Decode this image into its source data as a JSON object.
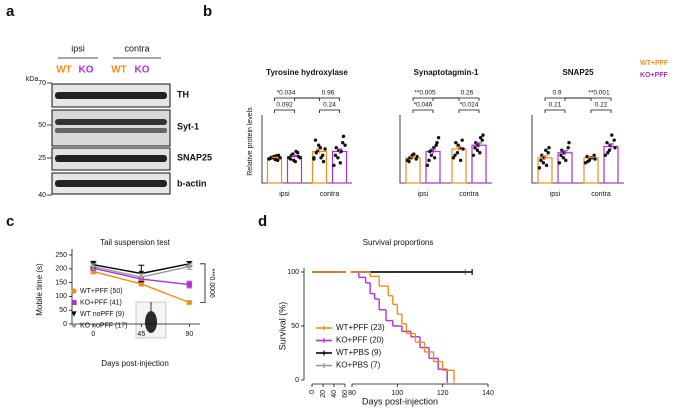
{
  "panel_labels": [
    "a",
    "b",
    "c",
    "d"
  ],
  "blot": {
    "groups": [
      "ipsi",
      "contra"
    ],
    "lanes": [
      "WT",
      "KO",
      "WT",
      "KO"
    ],
    "marker_unit": "kDa",
    "markers": [
      "70",
      "50",
      "25",
      "40"
    ],
    "proteins": [
      "TH",
      "Syt-1",
      "SNAP25",
      "b-actin"
    ]
  },
  "chart_data": [
    {
      "type": "bar",
      "title": "Tyrosine hydroxylase",
      "ylabel": "Relative protein levels",
      "categories": [
        "ipsi",
        "contra"
      ],
      "ylim": [
        0,
        2.5
      ],
      "series": [
        {
          "color": "#f28c1e",
          "values": [
            1.0,
            1.25
          ],
          "errors": [
            0.02,
            0.08
          ],
          "points": [
            [
              0.95,
              1.0,
              1.05,
              0.9,
              1.1,
              0.98,
              1.02,
              0.93,
              1.08,
              1.0
            ],
            [
              1.0,
              1.3,
              1.5,
              1.1,
              0.85,
              1.7,
              1.2,
              1.4,
              1.0,
              1.35,
              0.95
            ]
          ]
        },
        {
          "color": "#a833d6",
          "values": [
            1.05,
            1.25
          ],
          "errors": [
            0.04,
            0.1
          ],
          "points": [
            [
              1.0,
              1.15,
              0.9,
              1.2,
              1.05,
              0.95,
              1.1,
              0.85,
              1.25,
              1.0
            ],
            [
              0.7,
              1.0,
              1.3,
              1.6,
              1.85,
              1.1,
              1.4,
              0.8,
              1.25,
              1.5
            ]
          ]
        }
      ],
      "annotations": [
        "*0.034",
        "0.96",
        "0.092",
        "0.24"
      ]
    },
    {
      "type": "bar",
      "title": "Synaptotagmin-1",
      "categories": [
        "ipsi",
        "contra"
      ],
      "ylim": [
        0,
        2.5
      ],
      "series": [
        {
          "color": "#f28c1e",
          "values": [
            1.0,
            1.35
          ],
          "errors": [
            0.03,
            0.08
          ],
          "points": [
            [
              0.9,
              1.0,
              1.1,
              0.95,
              1.05,
              0.85,
              1.0,
              1.15
            ],
            [
              1.0,
              1.2,
              1.5,
              1.7,
              1.35,
              1.1,
              1.6,
              1.4,
              0.9
            ]
          ]
        },
        {
          "color": "#a833d6",
          "values": [
            1.25,
            1.5
          ],
          "errors": [
            0.1,
            0.09
          ],
          "points": [
            [
              0.7,
              1.1,
              1.3,
              1.5,
              1.6,
              0.9,
              1.25,
              1.4,
              1.0,
              1.8
            ],
            [
              1.1,
              1.3,
              1.5,
              1.7,
              1.9,
              1.4,
              1.6,
              1.2,
              1.8
            ]
          ]
        }
      ],
      "annotations": [
        "**0.005",
        "0.26",
        "*0.046",
        "*0.024"
      ]
    },
    {
      "type": "bar",
      "title": "SNAP25",
      "categories": [
        "ipsi",
        "contra"
      ],
      "ylim": [
        0,
        2.5
      ],
      "legend": "right",
      "series": [
        {
          "name": "WT+PFF",
          "color": "#f28c1e",
          "values": [
            1.0,
            1.0
          ],
          "errors": [
            0.08,
            0.02
          ],
          "points": [
            [
              0.6,
              0.8,
              1.0,
              1.2,
              1.4,
              0.9,
              1.1,
              1.3,
              0.7
            ],
            [
              0.8,
              0.9,
              1.0,
              1.1,
              0.95,
              1.05,
              0.85,
              1.0
            ]
          ]
        },
        {
          "name": "KO+PFF",
          "color": "#a833d6",
          "values": [
            1.2,
            1.45
          ],
          "errors": [
            0.08,
            0.1
          ],
          "points": [
            [
              0.8,
              1.0,
              1.2,
              1.4,
              1.6,
              1.1,
              1.3,
              0.9
            ],
            [
              1.1,
              1.3,
              1.5,
              1.7,
              1.4,
              1.6,
              1.2,
              1.9
            ]
          ]
        }
      ],
      "annotations": [
        "0.9",
        "**0.001",
        "0.21",
        "0.22"
      ]
    },
    {
      "type": "line",
      "title": "Tail suspension test",
      "xlabel": "Days post-injection",
      "ylabel": "Mobile time (s)",
      "x": [
        0,
        45,
        90
      ],
      "xlim": [
        -20,
        100
      ],
      "xticks": [
        0,
        45,
        90
      ],
      "ylim": [
        0,
        250
      ],
      "yticks": [
        0,
        50,
        100,
        150,
        200,
        250
      ],
      "legend": "lower left",
      "series": [
        {
          "name": "WT+PFF (50)",
          "color": "#f28c1e",
          "marker": "circle",
          "values": [
            190,
            145,
            78
          ],
          "errors": [
            8,
            7,
            6
          ]
        },
        {
          "name": "KO+PFF (41)",
          "color": "#a833d6",
          "marker": "square",
          "values": [
            202,
            163,
            143
          ],
          "errors": [
            7,
            8,
            12
          ]
        },
        {
          "name": "WT noPFF (9)",
          "color": "#000000",
          "marker": "triangle",
          "values": [
            215,
            183,
            218
          ],
          "errors": [
            12,
            30,
            8
          ]
        },
        {
          "name": "KO noPFF (17)",
          "color": "#999999",
          "marker": "diamond",
          "values": [
            208,
            170,
            208
          ],
          "errors": [
            10,
            12,
            10
          ]
        }
      ],
      "annotations": [
        "***0.0006"
      ]
    },
    {
      "type": "survival",
      "title": "Survival proportions",
      "xlabel": "Days post-injection",
      "ylabel": "Survival (%)",
      "xlim": [
        0,
        140
      ],
      "xbreak": [
        60,
        80
      ],
      "xticks": [
        0,
        20,
        40,
        60,
        80,
        100,
        120,
        140
      ],
      "ylim": [
        0,
        100
      ],
      "yticks": [
        0,
        50,
        100
      ],
      "legend": "lower left",
      "series": [
        {
          "name": "WT+PFF (23)",
          "color": "#f28c1e",
          "x": [
            0,
            88,
            92,
            96,
            98,
            100,
            102,
            104,
            108,
            112,
            116,
            120,
            125
          ],
          "values": [
            100,
            96,
            87,
            78,
            70,
            61,
            52,
            43,
            35,
            26,
            17,
            9,
            0
          ]
        },
        {
          "name": "KO+PFF (20)",
          "color": "#a833d6",
          "x": [
            0,
            83,
            86,
            88,
            90,
            92,
            95,
            98,
            102,
            106,
            110,
            114,
            118,
            122
          ],
          "values": [
            100,
            95,
            90,
            80,
            75,
            65,
            55,
            50,
            45,
            40,
            30,
            20,
            10,
            0
          ]
        },
        {
          "name": "WT+PBS (9)",
          "color": "#000000",
          "x": [
            0,
            133
          ],
          "values": [
            100,
            100
          ]
        },
        {
          "name": "KO+PBS (7)",
          "color": "#999999",
          "x": [
            0,
            130
          ],
          "values": [
            100,
            100
          ]
        }
      ]
    }
  ]
}
